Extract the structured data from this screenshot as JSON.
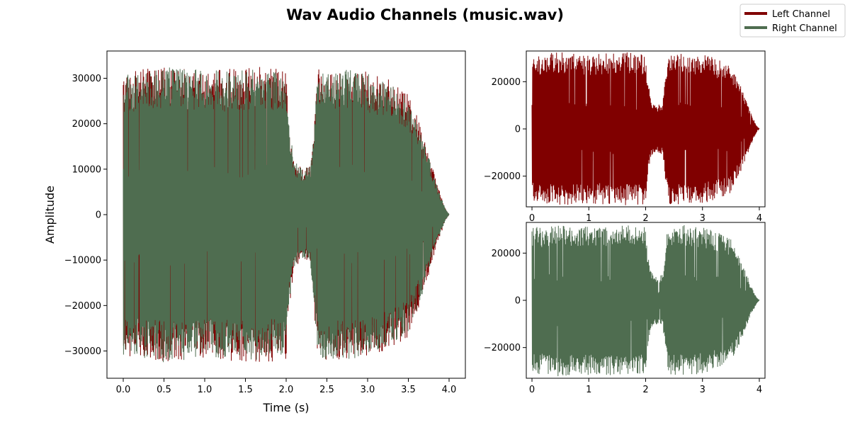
{
  "title": "Wav Audio Channels (music.wav)",
  "colors": {
    "left": "#800000",
    "right": "#4f6d50"
  },
  "legend": {
    "placement": "top-right",
    "entries": [
      "Left Channel",
      "Right Channel"
    ]
  },
  "chart_data": [
    {
      "type": "line",
      "panel": "combined",
      "xlabel": "Time (s)",
      "ylabel": "Amplitude",
      "xlim": [
        -0.2,
        4.2
      ],
      "ylim": [
        -36000,
        36000
      ],
      "xticks": [
        0.0,
        0.5,
        1.0,
        1.5,
        2.0,
        2.5,
        3.0,
        3.5,
        4.0
      ],
      "xtick_labels": [
        "0.0",
        "0.5",
        "1.0",
        "1.5",
        "2.0",
        "2.5",
        "3.0",
        "3.5",
        "4.0"
      ],
      "yticks": [
        -30000,
        -20000,
        -10000,
        0,
        10000,
        20000,
        30000
      ],
      "ytick_labels": [
        "−30000",
        "−20000",
        "−10000",
        "0",
        "10000",
        "20000",
        "30000"
      ],
      "series": [
        {
          "name": "Left Channel",
          "envelope_time": [
            0.0,
            0.25,
            0.5,
            0.75,
            1.0,
            1.25,
            1.5,
            1.75,
            2.0,
            2.04,
            2.1,
            2.2,
            2.3,
            2.39,
            2.5,
            2.75,
            3.0,
            3.25,
            3.5,
            3.7,
            3.85,
            3.95,
            4.0
          ],
          "envelope_amplitude": [
            31000,
            32000,
            32500,
            32000,
            31500,
            32000,
            32500,
            32500,
            32000,
            20000,
            12000,
            10000,
            11000,
            32000,
            32000,
            32000,
            31500,
            30000,
            27000,
            17000,
            7000,
            1500,
            0
          ]
        },
        {
          "name": "Right Channel",
          "envelope_time": [
            0.0,
            0.25,
            0.5,
            0.75,
            1.0,
            1.25,
            1.5,
            1.75,
            2.0,
            2.04,
            2.1,
            2.2,
            2.3,
            2.39,
            2.5,
            2.75,
            3.0,
            3.25,
            3.5,
            3.7,
            3.85,
            3.95,
            4.0
          ],
          "envelope_amplitude": [
            31000,
            31500,
            32500,
            32000,
            32000,
            31500,
            32000,
            32000,
            31000,
            19000,
            12000,
            10000,
            11000,
            31500,
            32000,
            32000,
            31000,
            29000,
            26000,
            16000,
            6500,
            1500,
            0
          ]
        }
      ]
    },
    {
      "type": "line",
      "panel": "left",
      "xlim": [
        -0.1,
        4.1
      ],
      "ylim": [
        -33000,
        33000
      ],
      "xticks": [
        0,
        1,
        2,
        3,
        4
      ],
      "xtick_labels": [
        "0",
        "1",
        "2",
        "3",
        "4"
      ],
      "yticks": [
        -20000,
        0,
        20000
      ],
      "ytick_labels": [
        "−20000",
        "0",
        "20000"
      ],
      "series": [
        {
          "name": "Left Channel",
          "envelope_time": [
            0.0,
            0.25,
            0.5,
            0.75,
            1.0,
            1.25,
            1.5,
            1.75,
            2.0,
            2.04,
            2.1,
            2.2,
            2.3,
            2.39,
            2.5,
            2.75,
            3.0,
            3.25,
            3.5,
            3.7,
            3.85,
            3.95,
            4.0
          ],
          "envelope_amplitude": [
            31000,
            32000,
            32500,
            32000,
            31500,
            32000,
            32500,
            32500,
            32000,
            20000,
            12000,
            10000,
            11000,
            32000,
            32000,
            32000,
            31500,
            30000,
            27000,
            17000,
            7000,
            1500,
            0
          ]
        }
      ]
    },
    {
      "type": "line",
      "panel": "right",
      "xlim": [
        -0.1,
        4.1
      ],
      "ylim": [
        -33000,
        33000
      ],
      "xticks": [
        0,
        1,
        2,
        3,
        4
      ],
      "xtick_labels": [
        "0",
        "1",
        "2",
        "3",
        "4"
      ],
      "yticks": [
        -20000,
        0,
        20000
      ],
      "ytick_labels": [
        "−20000",
        "0",
        "20000"
      ],
      "series": [
        {
          "name": "Right Channel",
          "envelope_time": [
            0.0,
            0.25,
            0.5,
            0.75,
            1.0,
            1.25,
            1.5,
            1.75,
            2.0,
            2.04,
            2.1,
            2.2,
            2.3,
            2.39,
            2.5,
            2.75,
            3.0,
            3.25,
            3.5,
            3.7,
            3.85,
            3.95,
            4.0
          ],
          "envelope_amplitude": [
            31000,
            31500,
            32500,
            32000,
            32000,
            31500,
            32000,
            32000,
            31000,
            19000,
            12000,
            10000,
            11000,
            31500,
            32000,
            32000,
            31000,
            29000,
            26000,
            16000,
            6500,
            1500,
            0
          ]
        }
      ]
    }
  ]
}
